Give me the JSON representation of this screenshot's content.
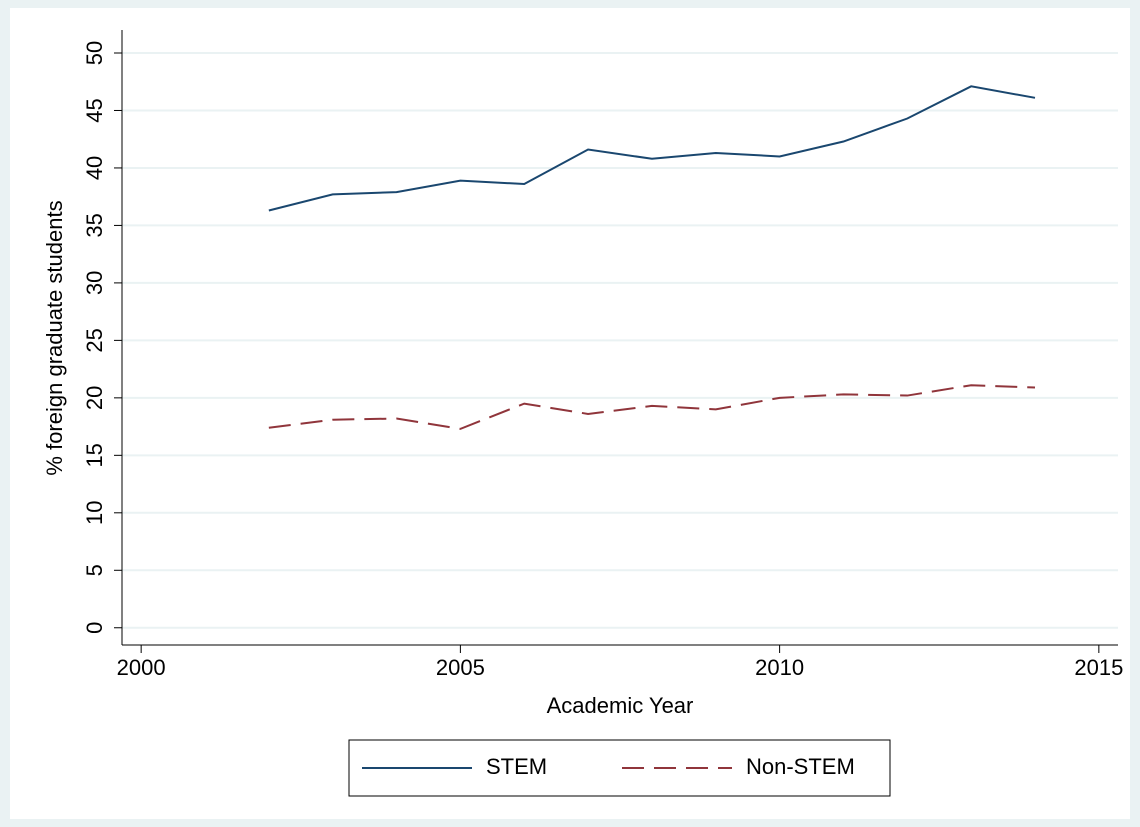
{
  "chart_data": {
    "type": "line",
    "x_label": "Academic Year",
    "y_label": "% foreign graduate students",
    "x": [
      2002,
      2003,
      2004,
      2005,
      2006,
      2007,
      2008,
      2009,
      2010,
      2011,
      2012,
      2013,
      2014
    ],
    "series": [
      {
        "name": "STEM",
        "color": "#1a476f",
        "linestyle": "solid",
        "values": [
          36.3,
          37.7,
          37.9,
          38.9,
          38.6,
          41.6,
          40.8,
          41.3,
          41.0,
          42.3,
          44.3,
          47.1,
          46.1
        ]
      },
      {
        "name": "Non-STEM",
        "color": "#90353b",
        "linestyle": "dashed",
        "values": [
          17.4,
          18.1,
          18.2,
          17.3,
          19.5,
          18.6,
          19.3,
          19.0,
          20.0,
          20.3,
          20.2,
          21.1,
          20.9
        ]
      }
    ],
    "xlim": [
      1999.7,
      2015.3
    ],
    "xticks": [
      2000,
      2005,
      2010,
      2015
    ],
    "ylim": [
      -1.5,
      52
    ],
    "yticks": [
      0,
      5,
      10,
      15,
      20,
      25,
      30,
      35,
      40,
      45,
      50
    ],
    "grid": true,
    "legend": "bottom"
  }
}
